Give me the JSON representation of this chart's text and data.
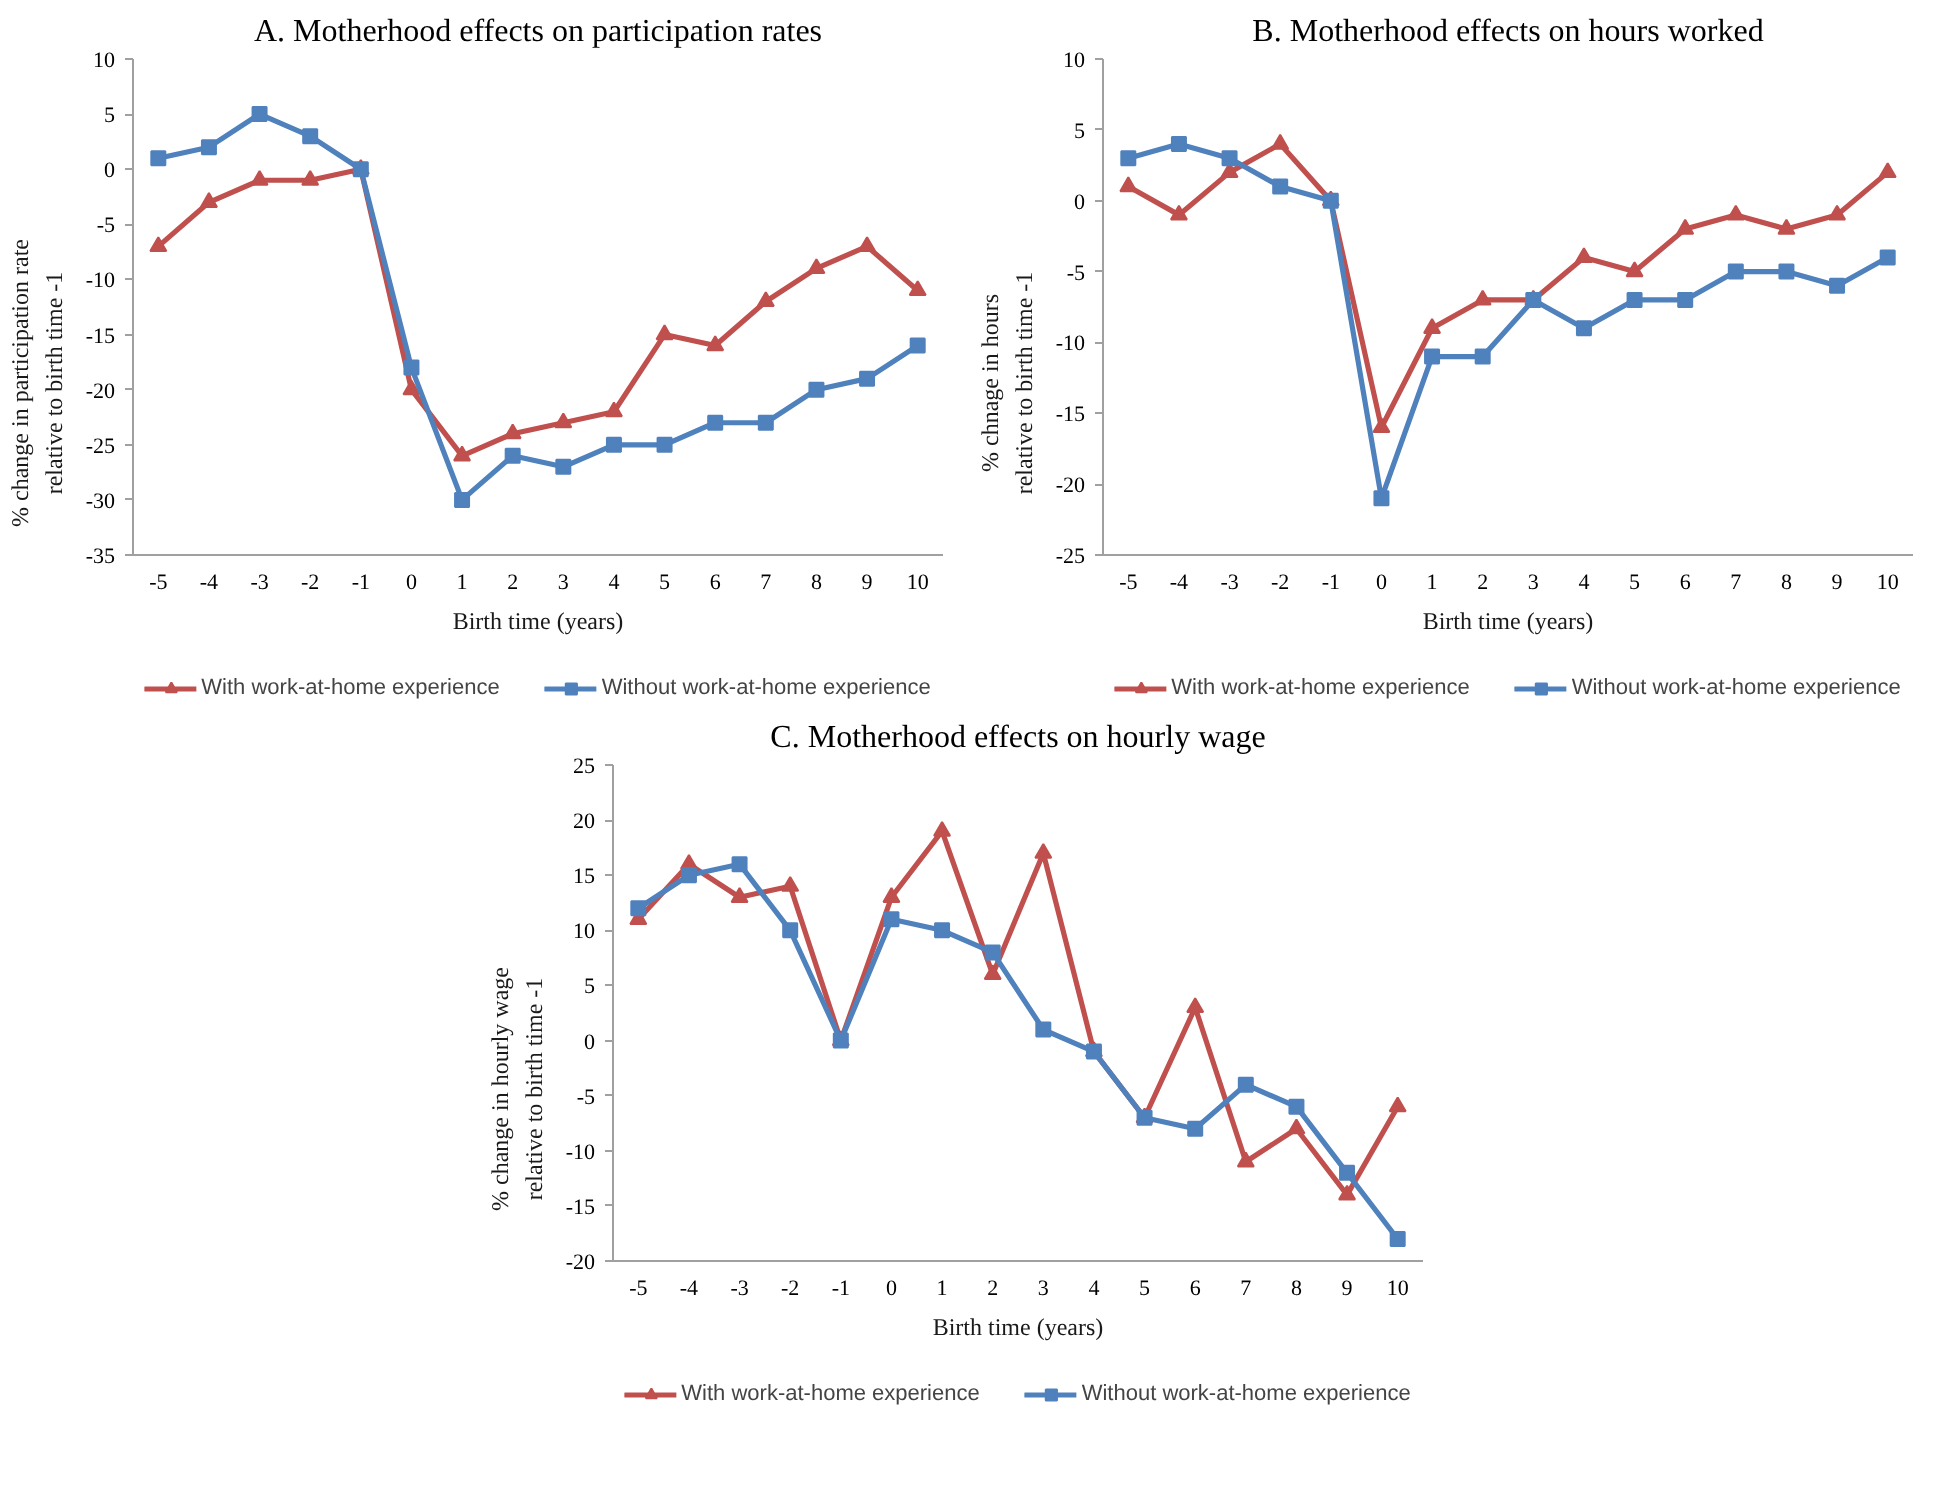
{
  "chart_data": [
    {
      "type": "line",
      "title": "A. Motherhood effects on participation rates",
      "xlabel": "Birth time (years)",
      "ylabel": "% change in participation rate\nrelative to birth time -1",
      "categories": [
        "-5",
        "-4",
        "-3",
        "-2",
        "-1",
        "0",
        "1",
        "2",
        "3",
        "4",
        "5",
        "6",
        "7",
        "8",
        "9",
        "10"
      ],
      "series": [
        {
          "name": "With work-at-home experience",
          "color": "#c0504d",
          "marker": "triangle",
          "values": [
            -7,
            -3,
            -1,
            -1,
            0,
            -20,
            -26,
            -24,
            -23,
            -22,
            -15,
            -16,
            -12,
            -9,
            -7,
            -11
          ]
        },
        {
          "name": "Without work-at-home experience",
          "color": "#4f81bd",
          "marker": "square",
          "values": [
            1,
            2,
            5,
            3,
            0,
            -18,
            -30,
            -26,
            -27,
            -25,
            -25,
            -23,
            -23,
            -20,
            -19,
            -16
          ]
        }
      ],
      "ylim": [
        -35,
        10
      ],
      "yticks": [
        -35,
        -30,
        -25,
        -20,
        -15,
        -10,
        -5,
        0,
        5,
        10
      ],
      "grid": false,
      "legend": "bottom",
      "line_style": "solid"
    },
    {
      "type": "line",
      "title": "B. Motherhood effects on hours worked",
      "xlabel": "Birth time (years)",
      "ylabel": "% chnage in hours\nrelative to birth time -1",
      "categories": [
        "-5",
        "-4",
        "-3",
        "-2",
        "-1",
        "0",
        "1",
        "2",
        "3",
        "4",
        "5",
        "6",
        "7",
        "8",
        "9",
        "10"
      ],
      "series": [
        {
          "name": "With work-at-home experience",
          "color": "#c0504d",
          "marker": "triangle",
          "values": [
            1,
            -1,
            2,
            4,
            0,
            -16,
            -9,
            -7,
            -7,
            -4,
            -5,
            -2,
            -1,
            -2,
            -1,
            2
          ]
        },
        {
          "name": "Without work-at-home experience",
          "color": "#4f81bd",
          "marker": "square",
          "values": [
            3,
            4,
            3,
            1,
            0,
            -21,
            -11,
            -11,
            -7,
            -9,
            -7,
            -7,
            -5,
            -5,
            -6,
            -4
          ]
        }
      ],
      "ylim": [
        -25,
        10
      ],
      "yticks": [
        -25,
        -20,
        -15,
        -10,
        -5,
        0,
        5,
        10
      ],
      "grid": false,
      "legend": "bottom",
      "line_style": "solid"
    },
    {
      "type": "line",
      "title": "C. Motherhood effects on hourly wage",
      "xlabel": "Birth time (years)",
      "ylabel": "% change in hourly wage\nrelative to birth time -1",
      "categories": [
        "-5",
        "-4",
        "-3",
        "-2",
        "-1",
        "0",
        "1",
        "2",
        "3",
        "4",
        "5",
        "6",
        "7",
        "8",
        "9",
        "10"
      ],
      "series": [
        {
          "name": "With work-at-home experience",
          "color": "#c0504d",
          "marker": "triangle",
          "values": [
            11,
            16,
            13,
            14,
            0,
            13,
            19,
            6,
            17,
            -1,
            -7,
            3,
            -11,
            -8,
            -14,
            -6
          ]
        },
        {
          "name": "Without work-at-home experience",
          "color": "#4f81bd",
          "marker": "square",
          "values": [
            12,
            15,
            16,
            10,
            0,
            11,
            10,
            8,
            1,
            -1,
            -7,
            -8,
            -4,
            -6,
            -12,
            -18
          ]
        }
      ],
      "ylim": [
        -20,
        25
      ],
      "yticks": [
        -20,
        -15,
        -10,
        -5,
        0,
        5,
        10,
        15,
        20,
        25
      ],
      "grid": false,
      "legend": "bottom",
      "line_style": "solid"
    }
  ]
}
